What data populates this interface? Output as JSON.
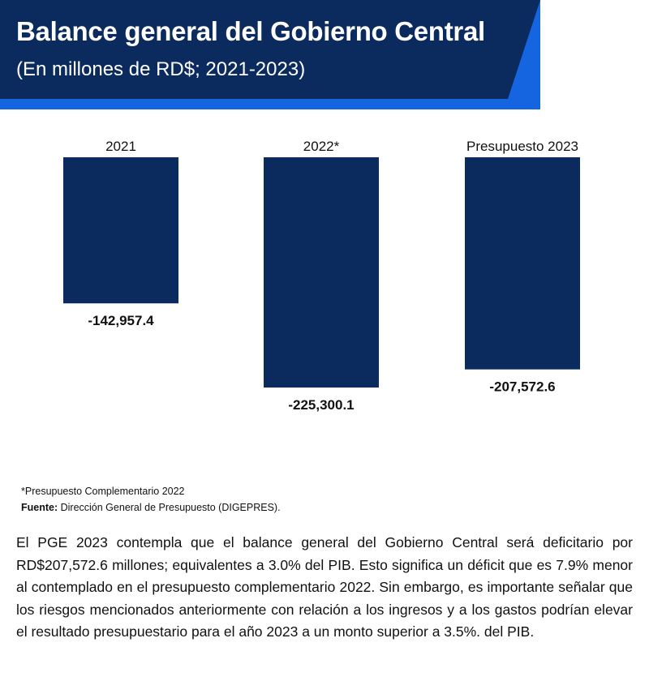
{
  "header": {
    "title": "Balance general del Gobierno Central",
    "subtitle": "(En millones de RD$; 2021-2023)",
    "colors": {
      "banner": "#0b2b5e",
      "accent": "#1565e0"
    }
  },
  "chart_data": {
    "type": "bar",
    "title": "Balance general del Gobierno Central",
    "subtitle": "(En millones de RD$; 2021-2023)",
    "categories": [
      "2021",
      "2022*",
      "Presupuesto 2023"
    ],
    "values": [
      -142957.4,
      -225300.1,
      -207572.6
    ],
    "value_labels": [
      "-142,957.4",
      "-225,300.1",
      "-207,572.6"
    ],
    "xlabel": "",
    "ylabel": "",
    "ylim": [
      -225300.1,
      0
    ],
    "grid": false,
    "legend": "none",
    "bar_color": "#0b2b5e"
  },
  "notes": {
    "footnote": "*Presupuesto Complementario 2022",
    "source_label": "Fuente:",
    "source_text": " Dirección General de Presupuesto (DIGEPRES)."
  },
  "body": {
    "paragraph": "El PGE 2023 contempla que el balance general del Gobierno Central será deficitario por RD$207,572.6 millones; equivalentes a 3.0% del PIB. Esto significa un déficit que es 7.9% menor al contemplado en el presupuesto complementario 2022. Sin embargo, es importante señalar que los riesgos mencionados anteriormente con relación a los ingresos y a los gastos podrían elevar el resultado presupuestario para el año 2023 a un monto superior a 3.5%. del PIB."
  }
}
